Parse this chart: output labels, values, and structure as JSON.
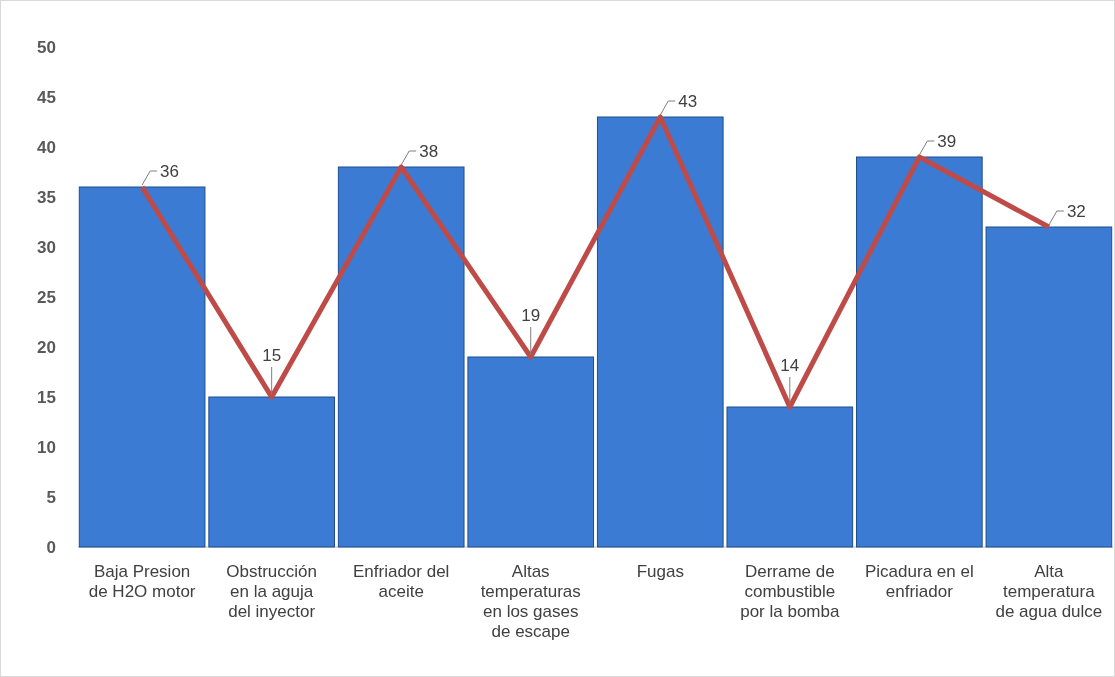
{
  "chart_data": {
    "type": "bar",
    "categories": [
      "Baja Presion de H2O motor",
      "Obstrucción en la aguja del inyector",
      "Enfriador del aceite",
      "Altas temperaturas en los gases de escape",
      "Fugas",
      "Derrame de combustible por la bomba",
      "Picadura en el enfriador",
      "Alta temperatura de agua dulce"
    ],
    "series": [
      {
        "color": "#3b7bd4",
        "values": [
          36,
          15,
          38,
          19,
          43,
          14,
          39,
          32
        ]
      },
      {
        "type": "line",
        "color": "#be4b48",
        "values": [
          36,
          15,
          38,
          19,
          43,
          14,
          39,
          32
        ],
        "value_labels": [
          "36",
          "15",
          "38",
          "19",
          "43",
          "14",
          "39",
          "32"
        ]
      }
    ],
    "ylim": [
      0,
      50
    ],
    "yticks": [
      0,
      5,
      10,
      15,
      20,
      25,
      30,
      35,
      40,
      45,
      50
    ],
    "grid": false
  }
}
